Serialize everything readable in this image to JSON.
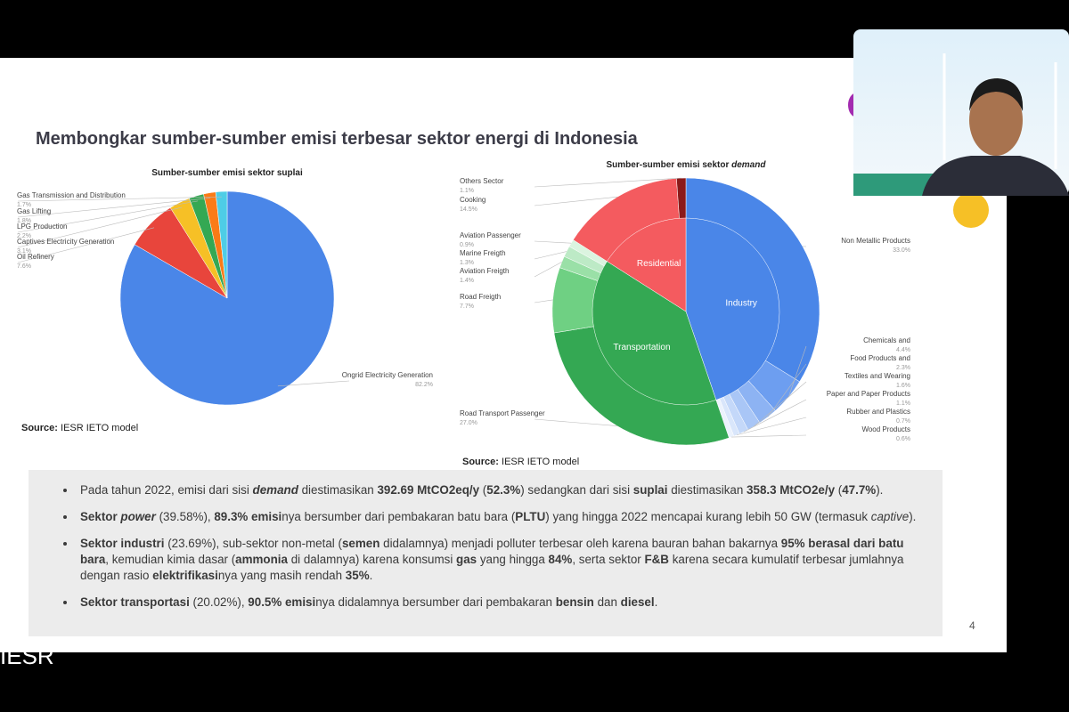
{
  "slide": {
    "title": "Membongkar sumber-sumber emisi terbesar sektor energi di Indonesia",
    "page_number": "4",
    "footer_logo": "IESR",
    "bullets": [
      [
        {
          "t": "Pada tahun 2022, emisi dari sisi "
        },
        {
          "t": "demand",
          "b": true,
          "i": true
        },
        {
          "t": " diestimasikan "
        },
        {
          "t": "392.69 MtCO2eq/y",
          "b": true
        },
        {
          "t": " ("
        },
        {
          "t": "52.3%",
          "b": true
        },
        {
          "t": ") sedangkan dari sisi "
        },
        {
          "t": "suplai",
          "b": true
        },
        {
          "t": " diestimasikan "
        },
        {
          "t": "358.3 MtCO2e/y",
          "b": true
        },
        {
          "t": " ("
        },
        {
          "t": "47.7%",
          "b": true
        },
        {
          "t": ")."
        }
      ],
      [
        {
          "t": "Sektor ",
          "b": true
        },
        {
          "t": "power",
          "b": true,
          "i": true
        },
        {
          "t": " (39.58%), "
        },
        {
          "t": "89.3% emisi",
          "b": true
        },
        {
          "t": "nya bersumber dari pembakaran batu bara ("
        },
        {
          "t": "PLTU",
          "b": true
        },
        {
          "t": ") yang hingga 2022 mencapai kurang lebih 50 GW (termasuk "
        },
        {
          "t": "captive",
          "i": true
        },
        {
          "t": ")."
        }
      ],
      [
        {
          "t": "Sektor industri",
          "b": true
        },
        {
          "t": " (23.69%), sub-sektor non-metal ("
        },
        {
          "t": "semen",
          "b": true
        },
        {
          "t": " didalamnya) menjadi polluter terbesar oleh karena bauran bahan bakarnya "
        },
        {
          "t": "95% berasal dari batu bara",
          "b": true
        },
        {
          "t": ", kemudian kimia dasar ("
        },
        {
          "t": "ammonia",
          "b": true
        },
        {
          "t": " di dalamnya) karena konsumsi "
        },
        {
          "t": "gas",
          "b": true
        },
        {
          "t": " yang hingga "
        },
        {
          "t": "84%",
          "b": true
        },
        {
          "t": ", serta sektor "
        },
        {
          "t": "F&B",
          "b": true
        },
        {
          "t": " karena secara kumulatif terbesar jumlahnya dengan rasio "
        },
        {
          "t": "elektrifikasi",
          "b": true
        },
        {
          "t": "nya yang masih rendah "
        },
        {
          "t": "35%",
          "b": true
        },
        {
          "t": "."
        }
      ],
      [
        {
          "t": "Sektor transportasi",
          "b": true
        },
        {
          "t": " (20.02%), "
        },
        {
          "t": "90.5% emisi",
          "b": true
        },
        {
          "t": "nya didalamnya bersumber dari pembakaran "
        },
        {
          "t": "bensin",
          "b": true
        },
        {
          "t": " dan "
        },
        {
          "t": "diesel",
          "b": true
        },
        {
          "t": "."
        }
      ]
    ]
  },
  "chart_data": [
    {
      "type": "pie",
      "title": "Sumber-sumber emisi sektor suplai",
      "source_label": "Source:",
      "source_text": " IESR IETO model",
      "categories": [
        "Ongrid Electricity Generation",
        "Oil Refinery",
        "Captives Electricity Generation",
        "LPG Production",
        "Gas Lifting",
        "Gas Transmission and Distribution"
      ],
      "values": [
        82.2,
        7.6,
        3.1,
        2.2,
        1.8,
        1.7
      ],
      "value_labels": [
        "82.2%",
        "7.6%",
        "3.1%",
        "2.2%",
        "1.8%",
        "1.7%"
      ],
      "colors": [
        "#4a86e8",
        "#e8453c",
        "#f6c026",
        "#34a853",
        "#fa7b17",
        "#4ecde6"
      ]
    },
    {
      "type": "sunburst",
      "title": "Sumber-sumber emisi sektor",
      "title_emphasis": "demand",
      "source_label": "Source:",
      "source_text": " IESR IETO model",
      "groups": [
        {
          "name": "Industry",
          "color": "#4a86e8",
          "children": [
            {
              "name": "Non Metallic Products",
              "value": 33.0,
              "value_label": "33.0%",
              "color": "#4a86e8"
            },
            {
              "name": "Chemicals and",
              "value": 4.4,
              "value_label": "4.4%",
              "color": "#6d9ef0"
            },
            {
              "name": "Food Products and",
              "value": 2.3,
              "value_label": "2.3%",
              "color": "#8db3f3"
            },
            {
              "name": "Textiles and Wearing",
              "value": 1.6,
              "value_label": "1.6%",
              "color": "#a9c6f6"
            },
            {
              "name": "Paper and Paper Products",
              "value": 1.1,
              "value_label": "1.1%",
              "color": "#c4d8f9"
            },
            {
              "name": "Rubber and Plastics",
              "value": 0.7,
              "value_label": "0.7%",
              "color": "#d9e6fb"
            },
            {
              "name": "Wood Products",
              "value": 0.6,
              "value_label": "0.6%",
              "color": "#ebf2fd"
            }
          ]
        },
        {
          "name": "Transportation",
          "color": "#34a853",
          "children": [
            {
              "name": "Road Transport Passenger",
              "value": 27.0,
              "value_label": "27.0%",
              "color": "#34a853"
            },
            {
              "name": "Road Freigth",
              "value": 7.7,
              "value_label": "7.7%",
              "color": "#6fd083"
            },
            {
              "name": "Aviation Freigth",
              "value": 1.4,
              "value_label": "1.4%",
              "color": "#9ae0a7"
            },
            {
              "name": "Marine Freigth",
              "value": 1.3,
              "value_label": "1.3%",
              "color": "#bdeac6"
            },
            {
              "name": "Aviation Passenger",
              "value": 0.9,
              "value_label": "0.9%",
              "color": "#dbf4e0"
            }
          ]
        },
        {
          "name": "Residential",
          "color": "#f45b5f",
          "children": [
            {
              "name": "Cooking",
              "value": 14.5,
              "value_label": "14.5%",
              "color": "#f45b5f"
            },
            {
              "name": "Others Sector",
              "value": 1.1,
              "value_label": "1.1%",
              "color": "#8b1a1a"
            }
          ]
        }
      ]
    }
  ]
}
